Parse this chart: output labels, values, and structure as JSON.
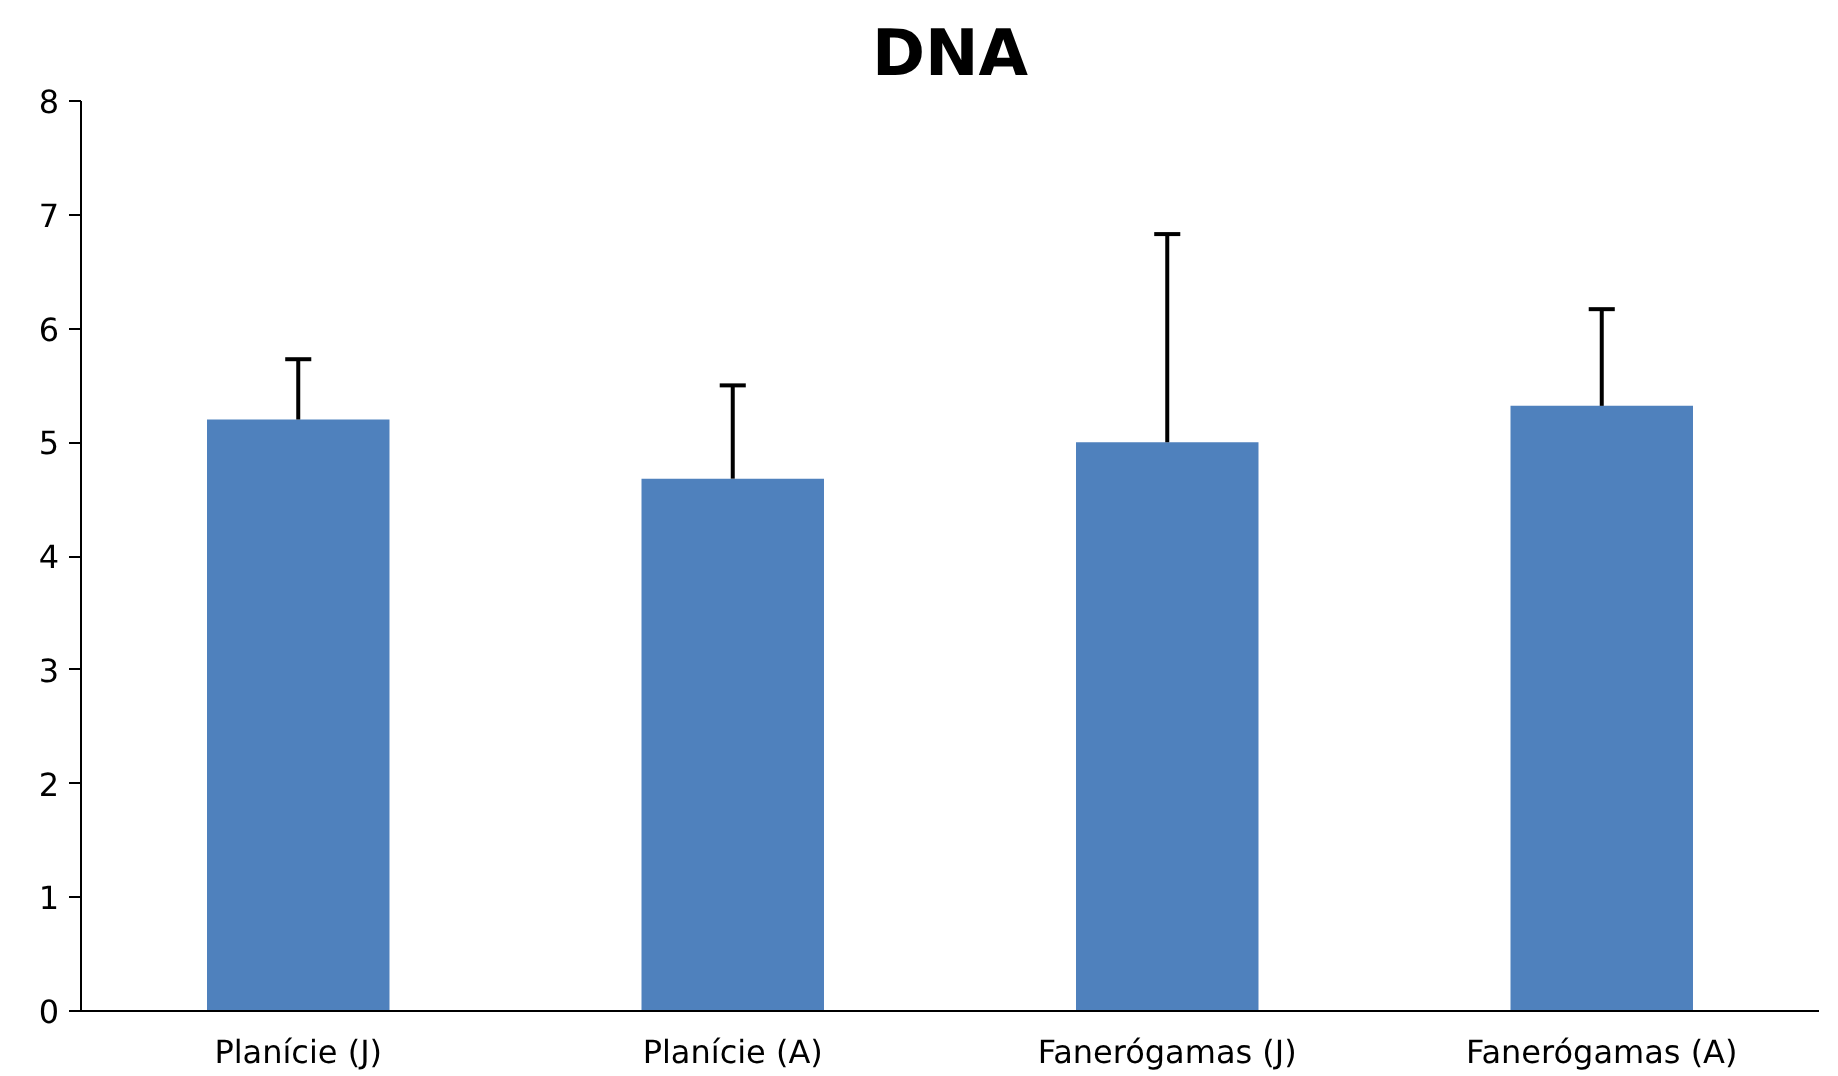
{
  "chart_data": {
    "type": "bar",
    "title": "DNA",
    "categories": [
      "Planície (J)",
      "Planície (A)",
      "Fanerógamas (J)",
      "Fanerógamas (A)"
    ],
    "values": [
      5.2,
      4.68,
      5.0,
      5.32
    ],
    "errors": [
      [
        5.2,
        5.73
      ],
      [
        4.68,
        5.5
      ],
      [
        5.0,
        6.83
      ],
      [
        5.32,
        6.17
      ]
    ],
    "color": "#4f81bd",
    "ylim": [
      0,
      8
    ],
    "yticks": [
      0,
      1,
      2,
      3,
      4,
      5,
      6,
      7,
      8
    ],
    "grid": false
  }
}
